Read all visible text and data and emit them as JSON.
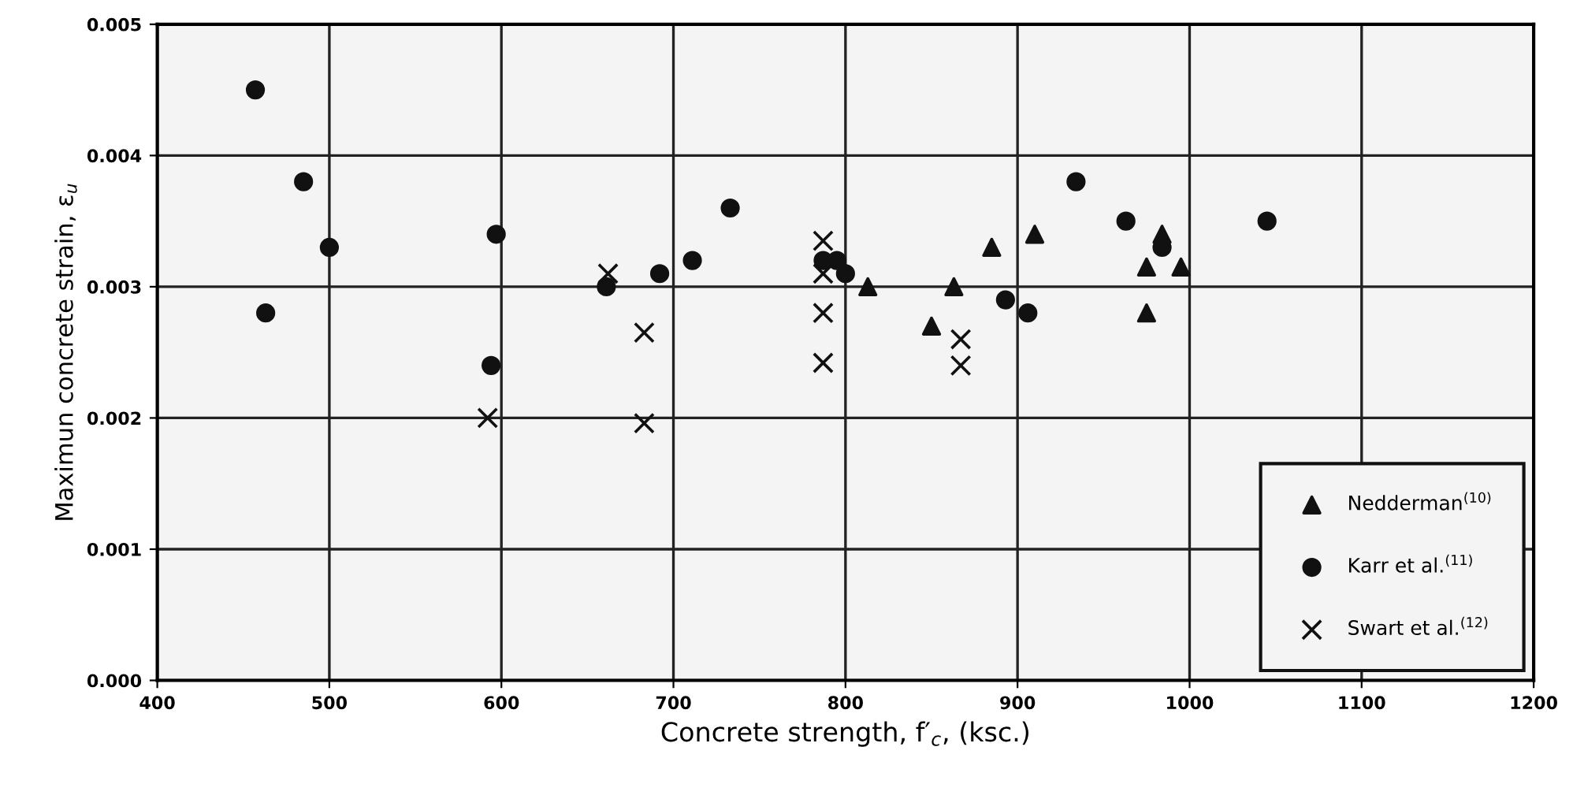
{
  "chart_data": {
    "type": "scatter",
    "xlabel": "Concrete strength, f′$_{c}$, (ksc.)",
    "ylabel": "Maximun concrete strain, ε$_{u}$",
    "xlim": [
      400,
      1200
    ],
    "xticks": [
      400,
      500,
      600,
      700,
      800,
      900,
      1000,
      1100,
      1200
    ],
    "ylim": [
      0,
      0.005
    ],
    "yticks": [
      {
        "value": 0,
        "label": "0.000"
      },
      {
        "value": 0.001,
        "label": "0.001"
      },
      {
        "value": 0.002,
        "label": "0.002"
      },
      {
        "value": 0.003,
        "label": "0.003"
      },
      {
        "value": 0.004,
        "label": "0.004"
      },
      {
        "value": 0.005,
        "label": "0.005"
      }
    ],
    "grid": true,
    "legend": "bottom right",
    "series": [
      {
        "name": "Nedderman$^{(10)}$",
        "color": "#111111",
        "marker": "triangle",
        "x": [
          813,
          850,
          863,
          885,
          910,
          975,
          975,
          984,
          995
        ],
        "values": [
          0.003,
          0.0027,
          0.003,
          0.0033,
          0.0034,
          0.00315,
          0.0028,
          0.0034,
          0.00315
        ]
      },
      {
        "name": "Karr et al.$^{(11)}$",
        "color": "#111111",
        "marker": "circle",
        "x": [
          457,
          463,
          485,
          500,
          594,
          597,
          661,
          692,
          711,
          733,
          787,
          795,
          800,
          893,
          906,
          934,
          963,
          984,
          1045
        ],
        "values": [
          0.0045,
          0.0028,
          0.0038,
          0.0033,
          0.0024,
          0.0034,
          0.003,
          0.0031,
          0.0032,
          0.0036,
          0.0032,
          0.0032,
          0.0031,
          0.0029,
          0.0028,
          0.0038,
          0.0035,
          0.0033,
          0.0035
        ]
      },
      {
        "name": "Swart et al.$^{(12)}$",
        "color": "#111111",
        "marker": "cross",
        "x": [
          592,
          662,
          683,
          683,
          787,
          787,
          787,
          787,
          867,
          867
        ],
        "values": [
          0.002,
          0.0031,
          0.00265,
          0.00196,
          0.00335,
          0.0031,
          0.0028,
          0.00242,
          0.0026,
          0.0024
        ]
      }
    ]
  }
}
